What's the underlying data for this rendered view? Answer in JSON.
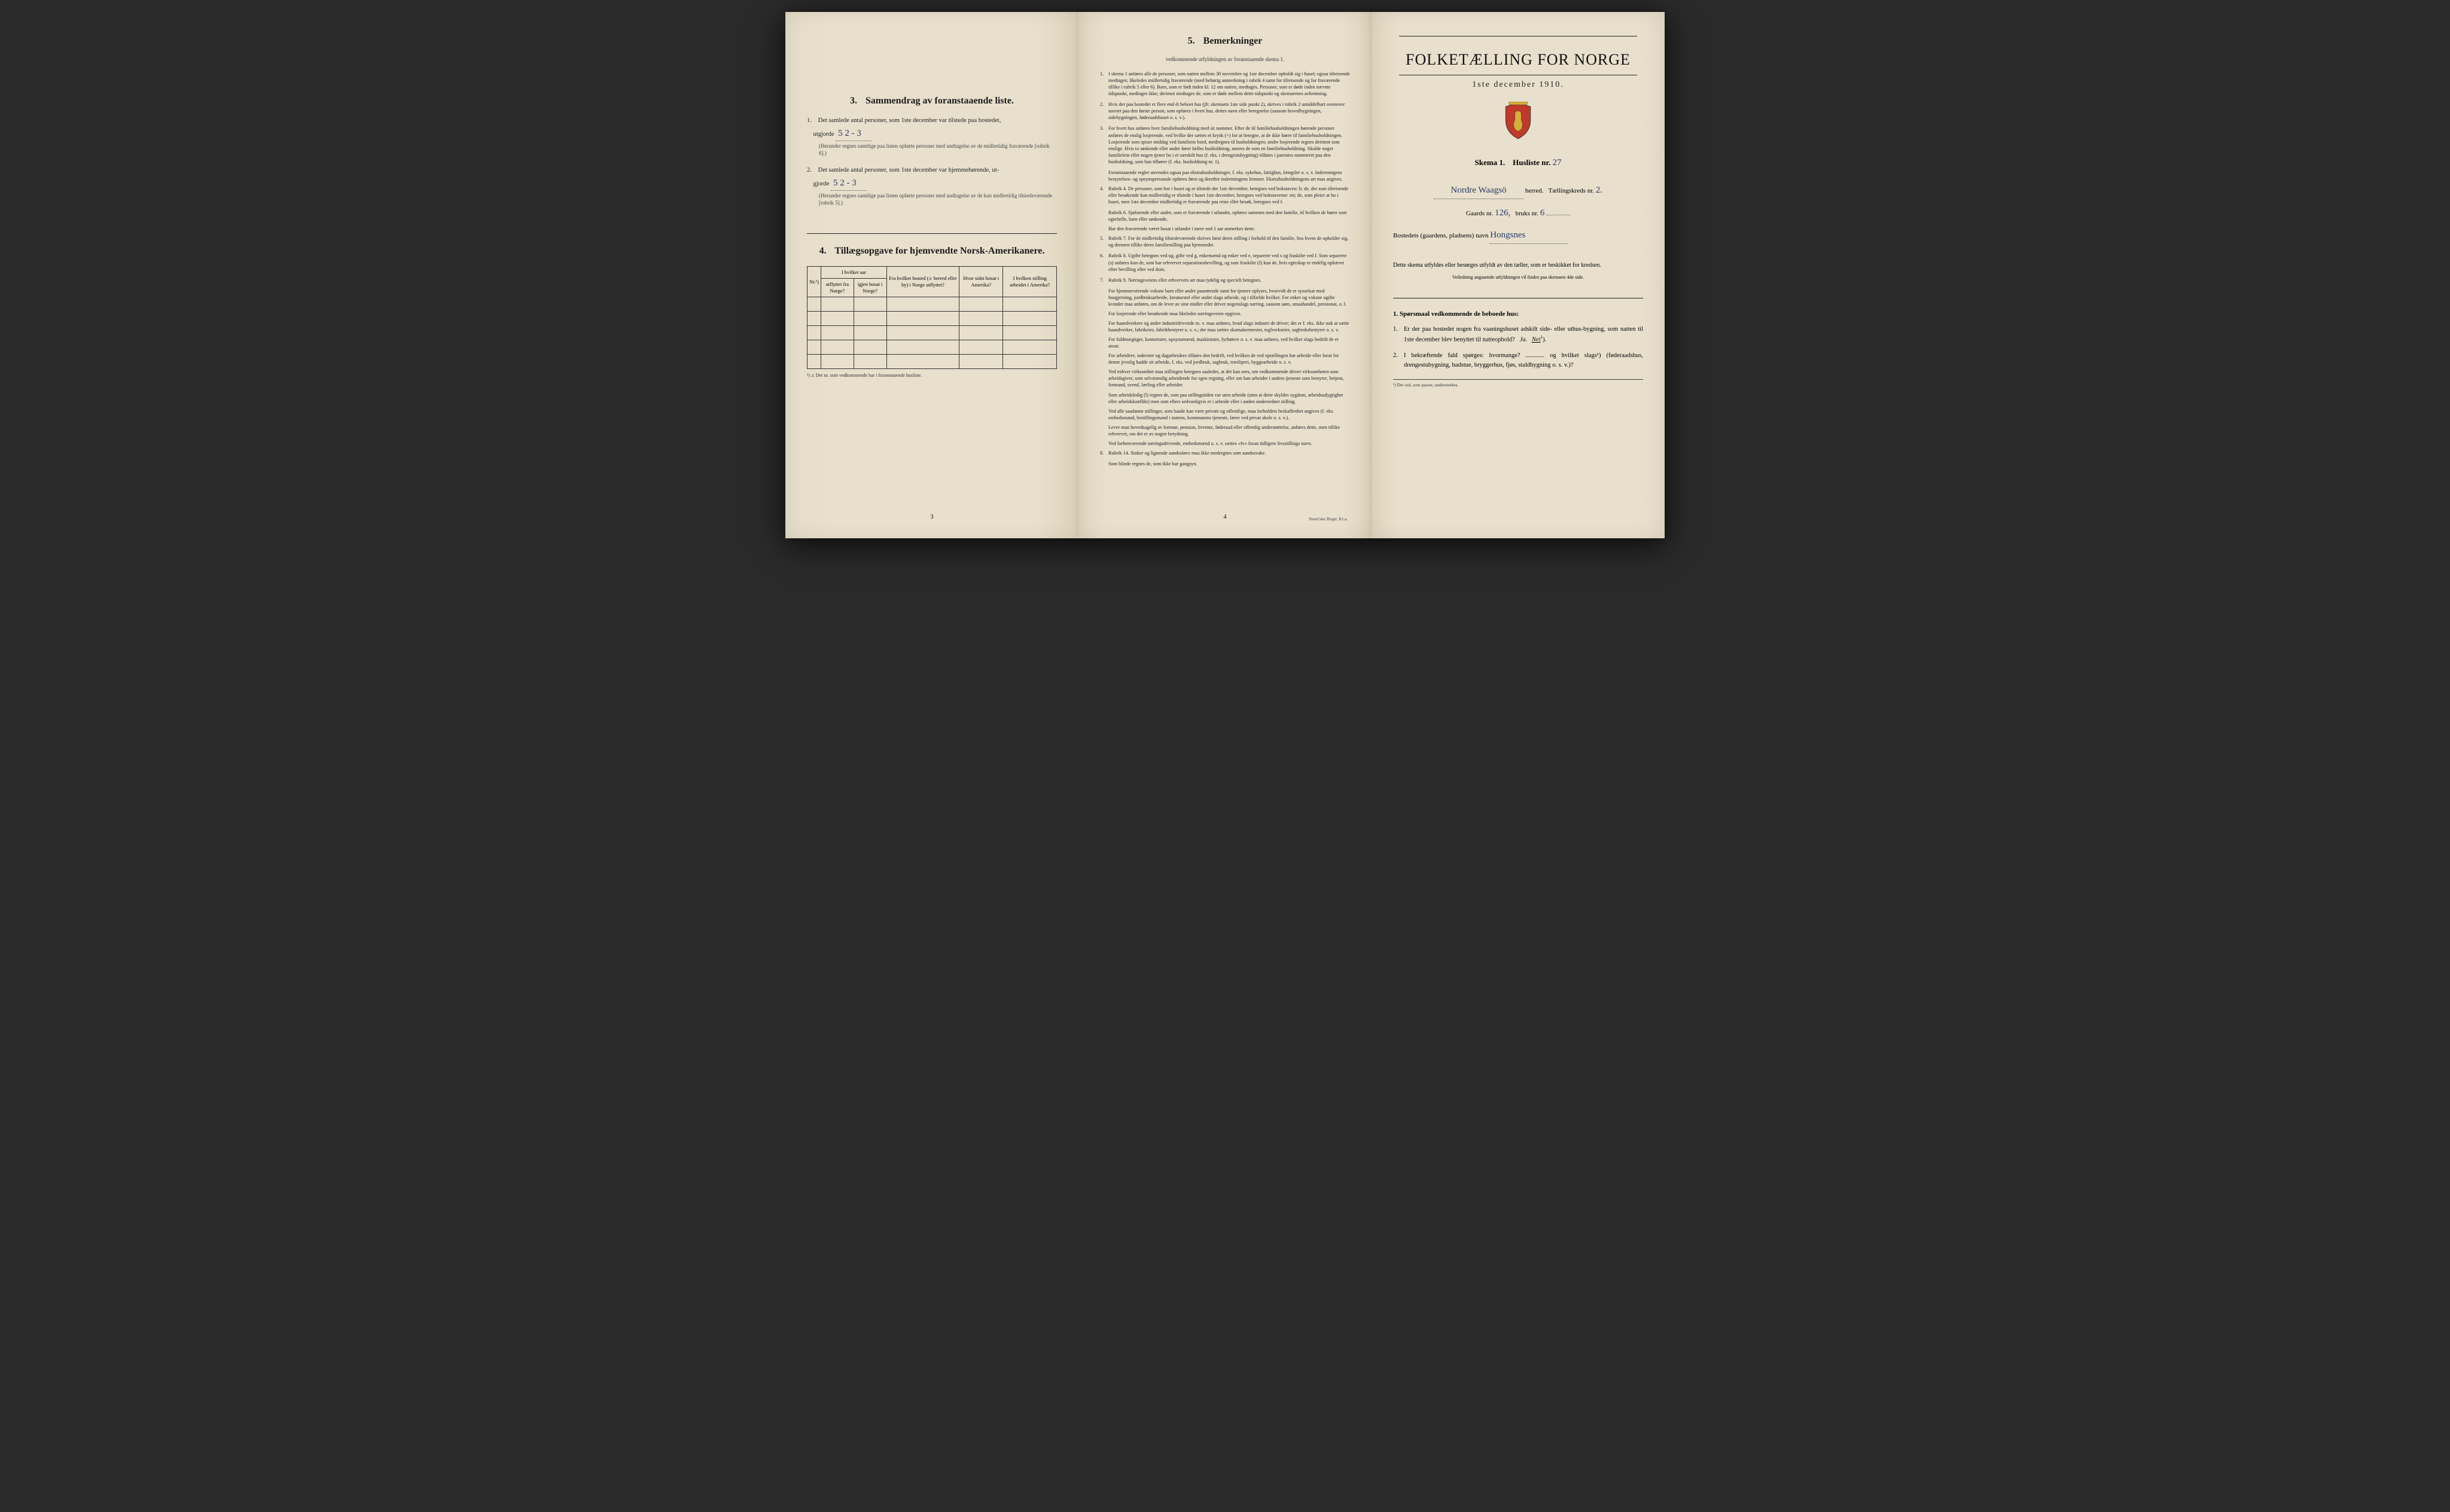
{
  "panel1": {
    "section3_title": "Sammendrag av foranstaaende liste.",
    "section3_num": "3.",
    "item1_text": "Det samlede antal personer, som 1ste december var tilstede paa bostedet,",
    "item1_num": "1.",
    "item1_line2": "utgjorde",
    "item1_handwritten": "5   2 - 3",
    "item1_note": "(Herunder regnes samtlige paa listen opførte personer med undtagelse av de midlertidig fraværende [rubrik 6].)",
    "item2_text": "Det samlede antal personer, som 1ste december var hjemmehørende, ut-",
    "item2_num": "2.",
    "item2_line2": "gjorde",
    "item2_handwritten": "5   2 - 3",
    "item2_note": "(Herunder regnes samtlige paa listen opførte personer med undtagelse av de kun midlertidig tilstedeværende [rubrik 5].)",
    "section4_title": "Tillægsopgave for hjemvendte Norsk-Amerikanere.",
    "section4_num": "4.",
    "table_headers": {
      "col1": "Nr.¹)",
      "col2a": "I hvilket aar",
      "col2b": "utflyttet fra Norge?",
      "col2c": "igjen bosat i Norge?",
      "col3": "Fra hvilket bosted (ɔ: herred eller by) i Norge utflyttet?",
      "col4": "Hvor sidst bosat i Amerika?",
      "col5": "I hvilken stilling arbeidet i Amerika?"
    },
    "table_footnote": "¹) ɔ: Det nr. som vedkommende har i foranstaaende husliste.",
    "page_num": "3"
  },
  "panel2": {
    "title": "Bemerkninger",
    "title_num": "5.",
    "subtitle": "vedkommende utfyldningen av foranstaaende skema 1.",
    "items": [
      {
        "n": "1.",
        "t": "I skema 1 anføres alle de personer, som natten mellem 30 november og 1ste december opholdt sig i huset; ogsaa tilreisende medtages; likeledes midlertidig fraværende (med behørig anmerkning i rubrik 4 samt for tilreisende og for fraværende tillike i rubrik 5 eller 6). Barn, som er født inden kl. 12 om natten, medtages. Personer, som er døde inden nævnte tidspunkt, medtages ikke; derimot medtages de, som er døde mellem dette tidspunkt og skemaernes avhentning."
      },
      {
        "n": "2.",
        "t": "Hvis der paa bostedet er flere end ét beboet hus (jfr. skemaets 1ste side punkt 2), skrives i rubrik 2 umiddelbart ovenover navnet paa den første person, som opføres i hvert hus, dettes navn eller betegnelse (saasom hovedbygningen, sidebygningen, føderaadshuset o. s. v.)."
      },
      {
        "n": "3.",
        "t": "For hvert hus anføres hver familiehusholdning med sit nummer. Efter de til familiehusholdningen hørende personer anføres de enslig losjerende, ved hvilke der sættes et kryds (×) for at betegne, at de ikke hører til familiehusholdningen. Losjerende som spiser middag ved familiens bord, medregnes til husholdningen; andre losjerende regnes derimot som enslige. Hvis to søskende eller andre fører fælles husholdning, ansees de som en familiehusholdning. Skulde noget familielem eller nogen tjener bo i et særskilt hus (f. eks. i drengestubygning) tilføies i parentes nummeret paa den husholdning, som han tilhører (f. eks. husholdning nr. 1)."
      },
      {
        "n": "",
        "t": "Foranstaaende regler anvendes ogsaa paa ekstrahusholdninger, f. eks. sykehus, fattighus, fængsler o. s. v. Indretningens bestyrelses- og opsynspersonale opføres først og derefter indretningens lemmer. Ekstrahusholdningens art maa angives."
      },
      {
        "n": "4.",
        "t": "Rubrik 4. De personer, som bor i huset og er tilstede der 1ste december, betegnes ved bokstaven: b; de, der som tilreisende eller besøkende kun midlertidig er tilstede i huset 1ste december, betegnes ved bokstaverne: mt; de, som pleier at bo i huset, men 1ste december midlertidig er fraværende paa reise eller besøk, betegnes ved f."
      },
      {
        "n": "",
        "t": "Rubrik 6. Sjøfarende eller andre, som er fraværende i utlandet, opføres sammen med den familie, til hvilken de hører som egtefælle, barn eller søskende."
      },
      {
        "n": "",
        "t": "Har den fraværende været bosat i utlandet i mere end 1 aar anmerkes dette."
      },
      {
        "n": "5.",
        "t": "Rubrik 7. For de midlertidig tilstedeværende skrives først deres stilling i forhold til den familie, hos hvem de opholder sig, og dernæst tillike deres familiestilling paa hjemstedet."
      },
      {
        "n": "6.",
        "t": "Rubrik 8. Ugifte betegnes ved ug, gifte ved g, enkemænd og enker ved e, separerte ved s og fraskilte ved f. Som separerte (s) anføres kun de, som har erhvervet separationsbevilling, og som fraskilte (f) kun de, hvis egteskap er endelig ophævet efter bevilling eller ved dom."
      },
      {
        "n": "7.",
        "t": "Rubrik 9. Næringsveiens eller erhvervets art maa tydelig og specielt betegnes."
      },
      {
        "n": "",
        "t": "For hjemmeværende voksne barn eller andre paarørende samt for tjenere oplyses, hvorvidt de er sysselsat med husgjerning, jordbruksarbeide, kreaturstel eller andet slags arbeide, og i tilfælde hvilket. For enker og voksne ugifte kvinder maa anføres, om de lever av sine midler eller driver nogenslags næring, saasom søm, smaahandel, pensionat, o. l."
      },
      {
        "n": "",
        "t": "For losjerende eller besøkende maa likeledes næringsveien opgives."
      },
      {
        "n": "",
        "t": "For haandverkere og andre industridrivende m. v. maa anføres, hvad slags industri de driver; det er f. eks. ikke nok at sætte haandverker, fabrikeier, fabrikbestyrer o. s. v.; der maa sættes skomakermester, teglverkseier, sagbruksbestyrer o. s. v."
      },
      {
        "n": "",
        "t": "For fuldmægtiger, kontorister, opsynsmænd, maskinister, fyrbøtere o. s. v. maa anføres, ved hvilket slags bedrift de er ansat."
      },
      {
        "n": "",
        "t": "For arbeidere, inderster og dagarbeidere tilføies den bedrift, ved hvilken de ved optællingen har arbeide eller forut for denne jevnlig hadde sit arbeide, f. eks. ved jordbruk, sagbruk, træsliperi, byggearbeide o. s. v."
      },
      {
        "n": "",
        "t": "Ved enhver virksomhet maa stillingen betegnes saaledes, at det kan sees, om vedkommende driver virksomheten som arbeidsgiver, som selvstændig arbeidende for egen regning, eller om han arbeider i andres tjeneste som bestyrer, betjent, formand, svend, lærling eller arbeider."
      },
      {
        "n": "",
        "t": "Som arbeidsledig (l) regnes de, som paa tællingstiden var uten arbeide (uten at dette skyldes sygdom, arbeidsudygtighet eller arbeidskonflikt) men som ellers sedvanligvis er i arbeide eller i anden underordnet stilling."
      },
      {
        "n": "",
        "t": "Ved alle saadanne stillinger, som baade kan være private og offentlige, maa forholdets beskaffenhet angives (f. eks. embedsmand, bestillingsmand i statens, kommunens tjeneste, lærer ved privat skole o. s. v.)."
      },
      {
        "n": "",
        "t": "Lever man hovedsagelig av formue, pension, livrente, føderaad eller offentlig understøttelse, anføres dette, men tillike erhvervet, om det er av nogen betydning."
      },
      {
        "n": "",
        "t": "Ved forhenværende næringsdrivende, embedsmænd o. s. v. sættes «fv» foran tidligere livsstillings navn."
      },
      {
        "n": "8.",
        "t": "Rubrik 14. Sinker og lignende aandssløve maa ikke medregnes som aandssvake."
      },
      {
        "n": "",
        "t": "Som blinde regnes de, som ikke har gangsyn."
      }
    ],
    "page_num": "4",
    "printer": "Steen'ske Bogtr. Kr.a."
  },
  "panel3": {
    "main_title": "FOLKETÆLLING FOR NORGE",
    "date": "1ste december 1910.",
    "skema_label": "Skema 1.",
    "husliste_label": "Husliste nr.",
    "husliste_nr": "27",
    "herred_handwritten": "Nordre Waagsö",
    "herred_label": "herred.",
    "krets_label": "Tællingskreds nr.",
    "krets_nr": "2.",
    "gaards_label": "Gaards nr.",
    "gaards_nr": "126,",
    "bruks_label": "bruks nr.",
    "bruks_nr": "6",
    "bosted_label": "Bostedets (gaardens, pladsens) navn",
    "bosted_handwritten": "Hongsnes",
    "instruct": "Dette skema utfyldes eller besørges utfyldt av den tæller, som er beskikket for kredsen.",
    "instruct_small": "Veiledning angaaende utfyldningen vil findes paa skemaets 4de side.",
    "q_title": "Spørsmaal vedkommende de beboede hus:",
    "q_title_num": "1.",
    "q1_num": "1.",
    "q1_text": "Er der paa bostedet nogen fra vaaningshuset adskilt side- eller uthus-bygning, som natten til 1ste december blev benyttet til natteophold?",
    "q1_ja": "Ja.",
    "q1_nei": "Nei",
    "q2_num": "2.",
    "q2_text": "I bekræftende fald spørges: hvormange? ............ og hvilket slags¹) (føderaadshus, drengestubygning, badstue, bryggerhus, fjøs, staldbygning o. s. v.)?",
    "footnote": "¹) Det ord, som passer, understrekes."
  },
  "colors": {
    "paper": "#e8e0cc",
    "ink": "#1a1a1a",
    "handwriting": "#2a3a6a",
    "border": "#333333"
  }
}
